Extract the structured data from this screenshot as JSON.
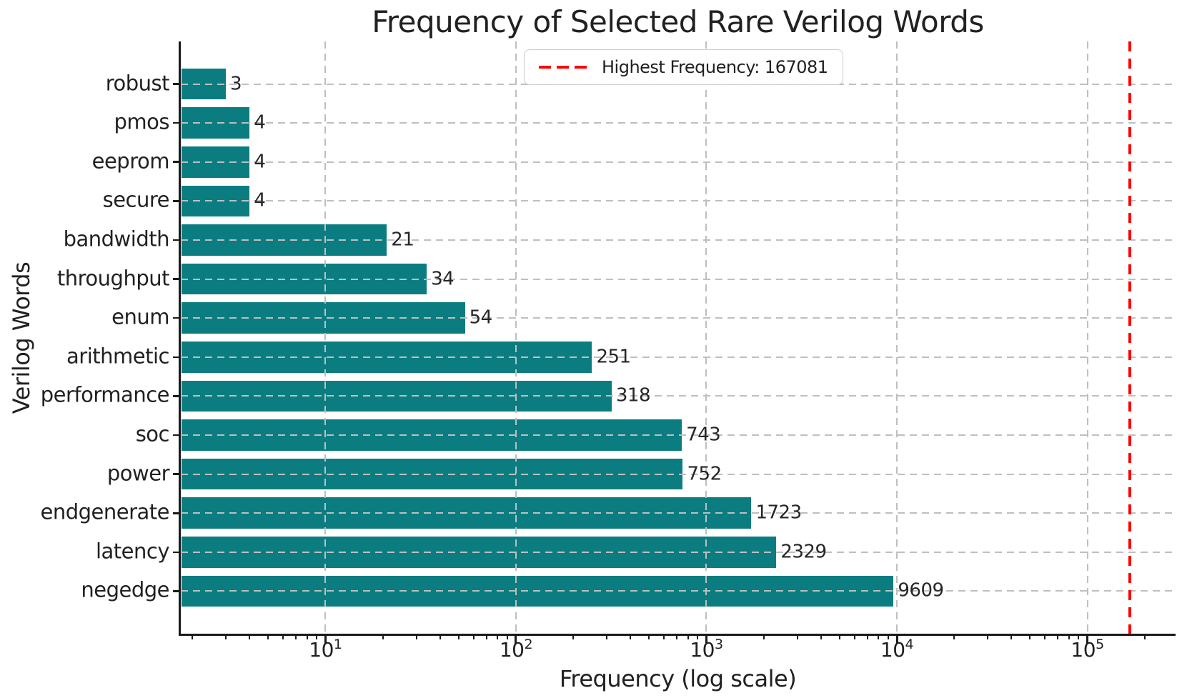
{
  "chart_data": {
    "type": "bar",
    "orientation": "horizontal",
    "title": "Frequency of Selected Rare Verilog Words",
    "xlabel": "Frequency (log scale)",
    "ylabel": "Verilog Words",
    "x_scale": "log",
    "grid": true,
    "categories": [
      "robust",
      "pmos",
      "eeprom",
      "secure",
      "bandwidth",
      "throughput",
      "enum",
      "arithmetic",
      "performance",
      "soc",
      "power",
      "endgenerate",
      "latency",
      "negedge"
    ],
    "values": [
      3,
      4,
      4,
      4,
      21,
      34,
      54,
      251,
      318,
      743,
      752,
      1723,
      2329,
      9609
    ],
    "x_tick_exponents": [
      1,
      2,
      3,
      4,
      5
    ],
    "xlim": [
      1.74,
      288000
    ],
    "ylim": [
      -1.09,
      14.09
    ],
    "bar_rel_height": 0.8,
    "highlight_line": {
      "value": 167081,
      "style": "dashed",
      "color": "#ff0000"
    },
    "legend": {
      "label": "Highest Frequency: 167081",
      "position": "upper center"
    },
    "colors": {
      "bar": "#0b7d80",
      "grid": "#bcc0c0",
      "text": "#212121",
      "spine": "#1a1a1a",
      "highlight": "#ff0000",
      "legend_border": "#cccccc"
    }
  }
}
